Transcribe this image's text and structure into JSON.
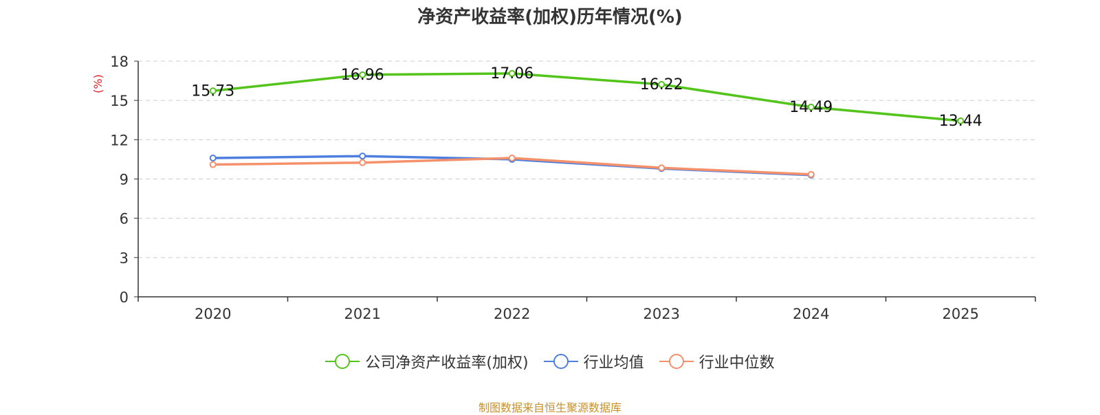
{
  "chart_data": {
    "type": "line",
    "title": "净资产收益率(加权)历年情况(%)",
    "ylabel": "(%)",
    "xlabel": "",
    "ylim": [
      0,
      18
    ],
    "yticks": [
      0,
      3,
      6,
      9,
      12,
      15,
      18
    ],
    "grid": true,
    "legend_position": "bottom-center",
    "categories": [
      "2020",
      "2021",
      "2022",
      "2023",
      "2024",
      "2025"
    ],
    "series": [
      {
        "name": "公司净资产收益率(加权)",
        "color": "#52c41a",
        "values": [
          15.73,
          16.96,
          17.06,
          16.22,
          14.49,
          13.44
        ],
        "show_labels": true
      },
      {
        "name": "行业均值",
        "color": "#4e7fe0",
        "values": [
          10.6,
          10.75,
          10.5,
          9.8,
          9.3,
          null
        ],
        "show_labels": false
      },
      {
        "name": "行业中位数",
        "color": "#f4906a",
        "values": [
          10.1,
          10.25,
          10.6,
          9.85,
          9.35,
          null
        ],
        "show_labels": false
      }
    ]
  },
  "source": "制图数据来自恒生聚源数据库"
}
